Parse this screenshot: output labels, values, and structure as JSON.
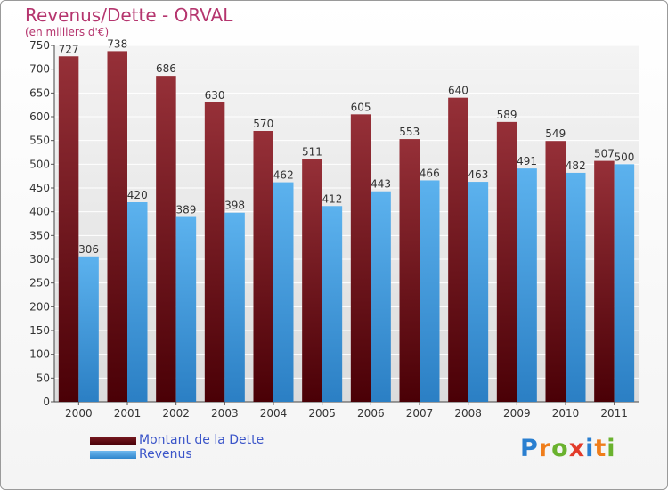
{
  "title": "Revenus/Dette - ORVAL",
  "subtitle": "(en milliers d'€)",
  "colors": {
    "dette": "#6b1018",
    "revenus": "#4fa3e0",
    "title": "#b5356e"
  },
  "logo": {
    "text": "Proxiti",
    "letters": [
      {
        "ch": "P",
        "color": "#2a7fd0"
      },
      {
        "ch": "r",
        "color": "#ef7d1a"
      },
      {
        "ch": "o",
        "color": "#6ab22e"
      },
      {
        "ch": "x",
        "color": "#e23b2a"
      },
      {
        "ch": "i",
        "color": "#2a7fd0"
      },
      {
        "ch": "t",
        "color": "#ef7d1a"
      },
      {
        "ch": "i",
        "color": "#6ab22e"
      }
    ]
  },
  "chart_data": {
    "type": "bar",
    "title": "Revenus/Dette - ORVAL",
    "subtitle": "(en milliers d'€)",
    "categories": [
      "2000",
      "2001",
      "2002",
      "2003",
      "2004",
      "2005",
      "2006",
      "2007",
      "2008",
      "2009",
      "2010",
      "2011"
    ],
    "series": [
      {
        "name": "Montant de la Dette",
        "values": [
          727,
          738,
          686,
          630,
          570,
          511,
          605,
          553,
          640,
          589,
          549,
          507
        ]
      },
      {
        "name": "Revenus",
        "values": [
          306,
          420,
          389,
          398,
          462,
          412,
          443,
          466,
          463,
          491,
          482,
          500
        ]
      }
    ],
    "ylim": [
      0,
      750
    ],
    "yticks": [
      0,
      50,
      100,
      150,
      200,
      250,
      300,
      350,
      400,
      450,
      500,
      550,
      600,
      650,
      700,
      750
    ],
    "grid": true,
    "legend": "bottom-left"
  }
}
